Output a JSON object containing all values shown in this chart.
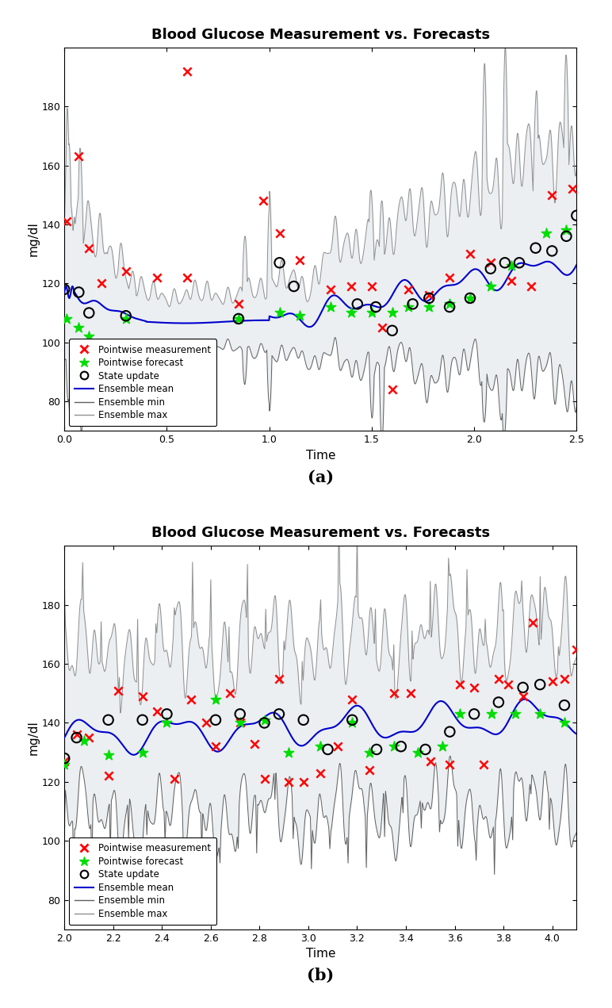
{
  "title": "Blood Glucose Measurement vs. Forecasts",
  "xlabel": "Time",
  "ylabel": "mg/dl",
  "label_a": "(a)",
  "label_b": "(b)",
  "legend_entries": [
    "Pointwise measurement",
    "Pointwise forecast",
    "State update",
    "Ensemble mean",
    "Ensemble min",
    "Ensemble max"
  ],
  "colors": {
    "measurement": "#ff0000",
    "forecast": "#00dd00",
    "state_update": "#000000",
    "ensemble_mean": "#0000cc",
    "ensemble_min": "#606060",
    "ensemble_max": "#909090",
    "fill": "#e8edf0"
  },
  "panel_a": {
    "xlim": [
      0,
      2.5
    ],
    "ylim": [
      70,
      200
    ],
    "yticks": [
      80,
      100,
      120,
      140,
      160,
      180
    ],
    "xticks": [
      0,
      0.5,
      1.0,
      1.5,
      2.0,
      2.5
    ]
  },
  "panel_b": {
    "xlim": [
      2.0,
      4.1
    ],
    "ylim": [
      70,
      200
    ],
    "yticks": [
      80,
      100,
      120,
      140,
      160,
      180
    ],
    "xticks": [
      2.0,
      2.2,
      2.4,
      2.6,
      2.8,
      3.0,
      3.2,
      3.4,
      3.6,
      3.8,
      4.0
    ]
  }
}
